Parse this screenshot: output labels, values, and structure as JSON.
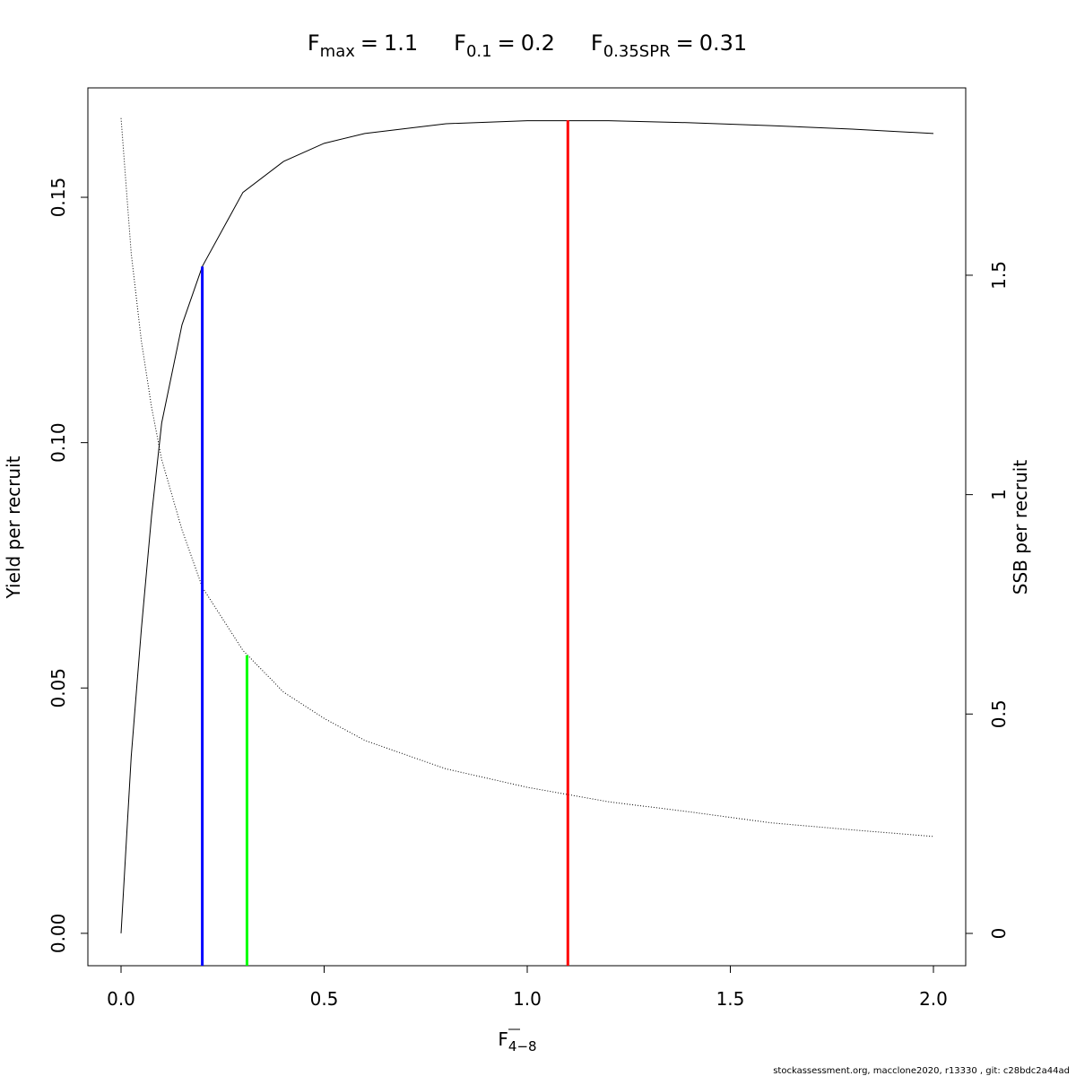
{
  "chart_data": {
    "type": "line",
    "reference_lines": [
      {
        "symbol": "F",
        "subscript": "max",
        "value": 1.1,
        "color": "#ff0000",
        "y_end": 0.1657,
        "axis": "y"
      },
      {
        "symbol": "F",
        "subscript": "0.1",
        "value": 0.2,
        "color": "#0000ff",
        "y_end": 0.1359,
        "axis": "y"
      },
      {
        "symbol": "F",
        "subscript": "0.35SPR",
        "value": 0.31,
        "color": "#00ff00",
        "y_end": 0.634,
        "axis": "y2"
      }
    ],
    "title_separator": "=",
    "x_label": {
      "symbol": "F",
      "subscript": "4−8"
    },
    "y_label": "Yield per recruit",
    "y2_label": "SSB per recruit",
    "footer": "stockassessment.org, macclone2020, r13330 , git: c28bdc2a44ad",
    "x": [
      0,
      0.025,
      0.05,
      0.075,
      0.1,
      0.15,
      0.2,
      0.3,
      0.4,
      0.5,
      0.6,
      0.8,
      1.0,
      1.2,
      1.4,
      1.6,
      1.8,
      2.0
    ],
    "series": [
      {
        "color": "#000000",
        "line_style": "solid",
        "axis": "y",
        "values": [
          0,
          0.036,
          0.062,
          0.085,
          0.104,
          0.124,
          0.1359,
          0.151,
          0.1573,
          0.161,
          0.163,
          0.165,
          0.1656,
          0.1656,
          0.1652,
          0.1646,
          0.1639,
          0.163
        ]
      },
      {
        "color": "#000000",
        "line_style": "dotted",
        "axis": "y2",
        "values": [
          1.858,
          1.55,
          1.35,
          1.2,
          1.08,
          0.92,
          0.789,
          0.645,
          0.55,
          0.49,
          0.44,
          0.375,
          0.333,
          0.3,
          0.277,
          0.252,
          0.236,
          0.221
        ]
      }
    ],
    "xlim": [
      -0.0817,
      2.0795
    ],
    "ylim": [
      -0.0066,
      0.1723
    ],
    "y2lim": [
      -0.0736,
      1.927
    ],
    "xticks": [
      {
        "value": 0,
        "label": "0.0"
      },
      0.5,
      {
        "value": 1,
        "label": "1.0"
      },
      1.5,
      {
        "value": 2,
        "label": "2.0"
      }
    ],
    "yticks": [
      {
        "value": 0,
        "label": "0.00"
      },
      0.05,
      {
        "value": 0.1,
        "label": "0.10"
      },
      {
        "value": 0.15,
        "label": "0.15"
      }
    ],
    "y2ticks": [
      0,
      0.5,
      1,
      1.5
    ]
  }
}
